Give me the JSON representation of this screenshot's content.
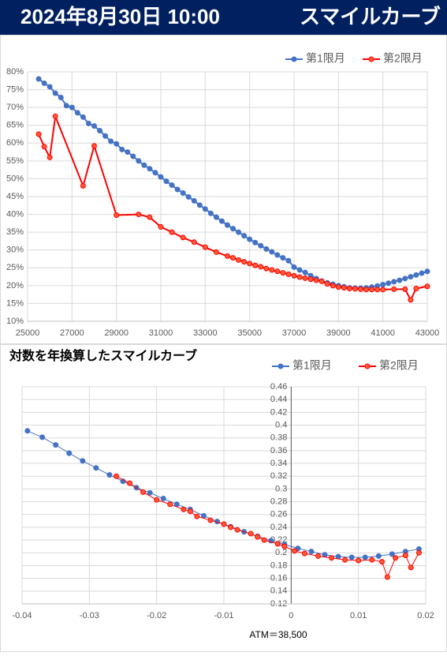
{
  "header": {
    "date": "2024年8月30日 10:00",
    "title": "スマイルカーブ"
  },
  "chart_data": [
    {
      "type": "line",
      "xlim": [
        25000,
        43000
      ],
      "xticks": [
        25000,
        27000,
        29000,
        31000,
        33000,
        35000,
        37000,
        39000,
        41000,
        43000
      ],
      "ylim": [
        10,
        80
      ],
      "yticks": [
        {
          "value": 10,
          "label": "10%"
        },
        {
          "value": 15,
          "label": "15%"
        },
        {
          "value": 20,
          "label": "20%"
        },
        {
          "value": 25,
          "label": "25%"
        },
        {
          "value": 30,
          "label": "30%"
        },
        {
          "value": 35,
          "label": "35%"
        },
        {
          "value": 40,
          "label": "40%"
        },
        {
          "value": 45,
          "label": "45%"
        },
        {
          "value": 50,
          "label": "50%"
        },
        {
          "value": 55,
          "label": "55%"
        },
        {
          "value": 60,
          "label": "60%"
        },
        {
          "value": 65,
          "label": "65%"
        },
        {
          "value": 70,
          "label": "70%"
        },
        {
          "value": 75,
          "label": "75%"
        },
        {
          "value": 80,
          "label": "80%"
        }
      ],
      "grid": true,
      "legend": "top-right",
      "series": [
        {
          "name": "第1限月",
          "color": "#4472c4",
          "x": [
            25500,
            25750,
            26000,
            26250,
            26500,
            26750,
            27000,
            27250,
            27500,
            27750,
            28000,
            28250,
            28500,
            28750,
            29000,
            29250,
            29500,
            29750,
            30000,
            30250,
            30500,
            30750,
            31000,
            31250,
            31500,
            31750,
            32000,
            32250,
            32500,
            32750,
            33000,
            33250,
            33500,
            33750,
            34000,
            34250,
            34500,
            34750,
            35000,
            35250,
            35500,
            35750,
            36000,
            36250,
            36500,
            36750,
            37000,
            37250,
            37500,
            37750,
            38000,
            38250,
            38500,
            38750,
            39000,
            39250,
            39500,
            39750,
            40000,
            40250,
            40500,
            40750,
            41000,
            41250,
            41500,
            41750,
            42000,
            42250,
            42500,
            42750,
            43000
          ],
          "values": [
            78.0,
            76.8,
            75.8,
            74.0,
            72.8,
            70.5,
            70.0,
            68.5,
            67.3,
            65.5,
            64.8,
            63.5,
            62.0,
            60.5,
            59.8,
            58.2,
            57.5,
            56.3,
            55.0,
            53.8,
            52.8,
            51.7,
            50.5,
            49.3,
            48.2,
            47.0,
            46.0,
            44.9,
            43.8,
            42.6,
            41.5,
            40.3,
            39.2,
            38.1,
            37.0,
            36.0,
            35.0,
            34.0,
            33.0,
            32.1,
            31.2,
            30.3,
            29.5,
            28.6,
            27.8,
            27.0,
            25.2,
            24.4,
            23.7,
            22.8,
            22.0,
            21.3,
            20.8,
            20.4,
            20.0,
            19.7,
            19.4,
            19.3,
            19.3,
            19.4,
            19.6,
            19.9,
            20.3,
            20.7,
            21.1,
            21.5,
            22.0,
            22.5,
            23.0,
            23.5,
            24.0
          ]
        },
        {
          "name": "第2限月",
          "color": "#ff0000",
          "x": [
            25500,
            25750,
            26000,
            26250,
            27500,
            28000,
            29000,
            30000,
            30500,
            31000,
            31500,
            32000,
            32500,
            33000,
            33500,
            34000,
            34250,
            34500,
            34750,
            35000,
            35250,
            35500,
            35750,
            36000,
            36250,
            36500,
            36750,
            37000,
            37250,
            37500,
            37750,
            38000,
            38250,
            38500,
            38750,
            39000,
            39250,
            39500,
            39750,
            40000,
            40250,
            40500,
            40750,
            41000,
            41500,
            42000,
            42250,
            42500,
            43000
          ],
          "values": [
            62.5,
            59.0,
            56.0,
            67.5,
            48.0,
            59.2,
            39.8,
            40.0,
            39.2,
            36.5,
            35.0,
            33.5,
            32.2,
            30.8,
            29.4,
            28.3,
            27.8,
            27.2,
            26.7,
            26.2,
            25.7,
            25.3,
            24.8,
            24.4,
            24.0,
            23.6,
            23.2,
            22.8,
            22.4,
            22.1,
            21.8,
            21.5,
            21.2,
            20.5,
            20.0,
            19.6,
            19.4,
            19.2,
            19.1,
            19.0,
            18.9,
            18.9,
            18.9,
            18.9,
            19.0,
            19.0,
            16.0,
            19.2,
            19.8
          ]
        }
      ]
    },
    {
      "type": "scatter",
      "title": "対数を年換算したスマイルカーブ",
      "annotation": "ATM＝38,500",
      "xlim": [
        -0.04,
        0.02
      ],
      "xticks": [
        -0.04,
        -0.03,
        -0.02,
        -0.01,
        0,
        0.01,
        0.02
      ],
      "ylim": [
        0.12,
        0.46
      ],
      "yticks": [
        0.12,
        0.14,
        0.16,
        0.18,
        0.2,
        0.22,
        0.24,
        0.26,
        0.28,
        0.3,
        0.32,
        0.34,
        0.36,
        0.38,
        0.4,
        0.42,
        0.44,
        0.46
      ],
      "grid": true,
      "legend": "top-right",
      "series": [
        {
          "name": "第1限月",
          "color": "#4472c4",
          "x": [
            -0.0392,
            -0.037,
            -0.035,
            -0.033,
            -0.031,
            -0.029,
            -0.027,
            -0.025,
            -0.023,
            -0.021,
            -0.019,
            -0.017,
            -0.015,
            -0.013,
            -0.011,
            -0.009,
            -0.007,
            -0.005,
            -0.003,
            -0.001,
            0.001,
            0.003,
            0.005,
            0.007,
            0.009,
            0.011,
            0.013,
            0.015,
            0.017,
            0.019
          ],
          "values": [
            0.391,
            0.381,
            0.369,
            0.356,
            0.344,
            0.333,
            0.322,
            0.312,
            0.302,
            0.294,
            0.285,
            0.276,
            0.268,
            0.258,
            0.249,
            0.241,
            0.233,
            0.226,
            0.219,
            0.213,
            0.207,
            0.202,
            0.197,
            0.194,
            0.193,
            0.193,
            0.195,
            0.198,
            0.202,
            0.206
          ]
        },
        {
          "name": "第2限月",
          "color": "#ff0000",
          "x": [
            -0.026,
            -0.024,
            -0.022,
            -0.02,
            -0.018,
            -0.016,
            -0.015,
            -0.014,
            -0.012,
            -0.01,
            -0.009,
            -0.008,
            -0.006,
            -0.005,
            -0.004,
            -0.002,
            -0.001,
            0.0005,
            0.002,
            0.004,
            0.006,
            0.008,
            0.01,
            0.012,
            0.0135,
            0.0143,
            0.0155,
            0.017,
            0.0178,
            0.019
          ],
          "values": [
            0.32,
            0.309,
            0.295,
            0.283,
            0.276,
            0.268,
            0.265,
            0.257,
            0.251,
            0.245,
            0.24,
            0.236,
            0.23,
            0.225,
            0.22,
            0.214,
            0.21,
            0.203,
            0.199,
            0.195,
            0.192,
            0.189,
            0.188,
            0.189,
            0.186,
            0.162,
            0.192,
            0.196,
            0.177,
            0.2
          ]
        }
      ]
    }
  ]
}
